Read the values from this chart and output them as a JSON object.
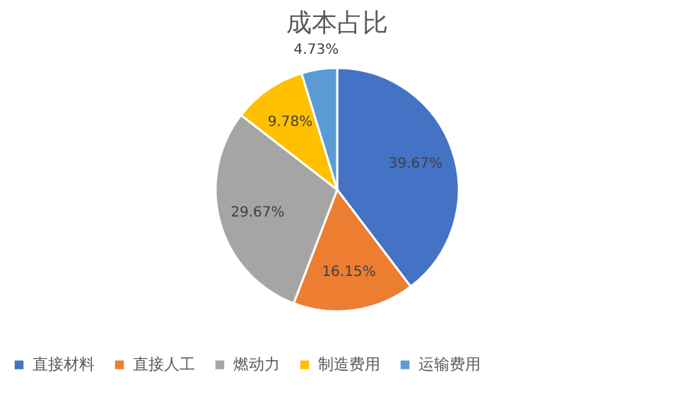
{
  "chart_data": {
    "type": "pie",
    "title": "成本占比",
    "categories": [
      "直接材料",
      "直接人工",
      "燃动力",
      "制造费用",
      "运输费用"
    ],
    "values": [
      39.67,
      16.15,
      29.67,
      9.78,
      4.73
    ],
    "colors": [
      "#4472c4",
      "#ed7d31",
      "#a5a5a5",
      "#ffc000",
      "#5b9bd5"
    ],
    "value_labels": [
      "39.67%",
      "16.15%",
      "29.67%",
      "9.78%",
      "4.73%"
    ],
    "legend": "bottom"
  }
}
